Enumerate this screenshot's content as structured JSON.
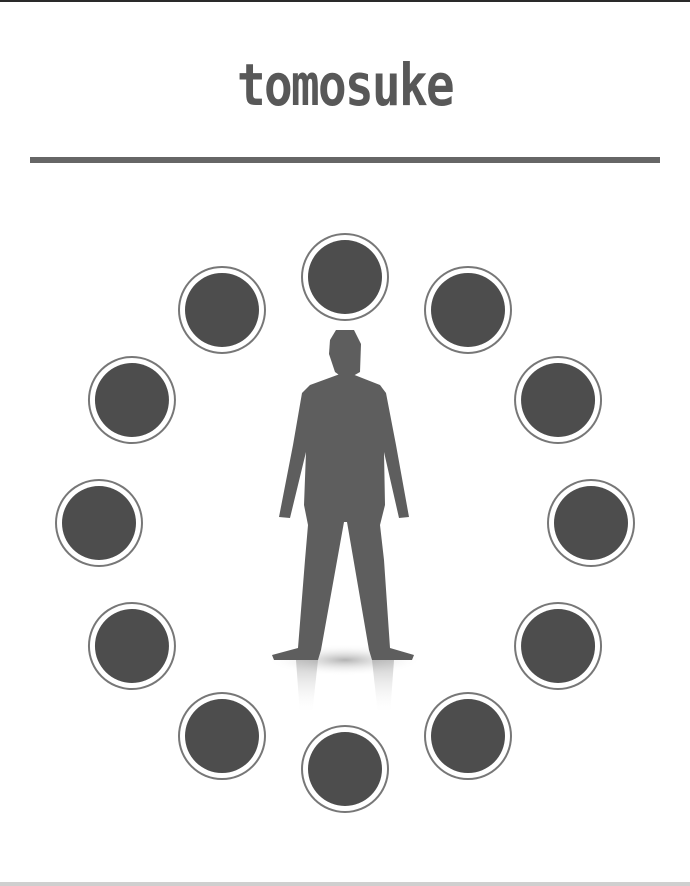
{
  "brand": {
    "logo_text": "tomosuke"
  },
  "colors": {
    "figure": "#5e5e5e",
    "node_fill": "#4d4d4d",
    "node_ring": "#777777",
    "node_gap": "#ffffff",
    "divider": "#666666"
  },
  "nodes": [
    {
      "id": "top"
    },
    {
      "id": "upper-right-1"
    },
    {
      "id": "upper-right-2"
    },
    {
      "id": "right"
    },
    {
      "id": "lower-right-2"
    },
    {
      "id": "lower-right-1"
    },
    {
      "id": "bottom"
    },
    {
      "id": "lower-left-1"
    },
    {
      "id": "lower-left-2"
    },
    {
      "id": "left"
    },
    {
      "id": "upper-left-2"
    },
    {
      "id": "upper-left-1"
    }
  ]
}
